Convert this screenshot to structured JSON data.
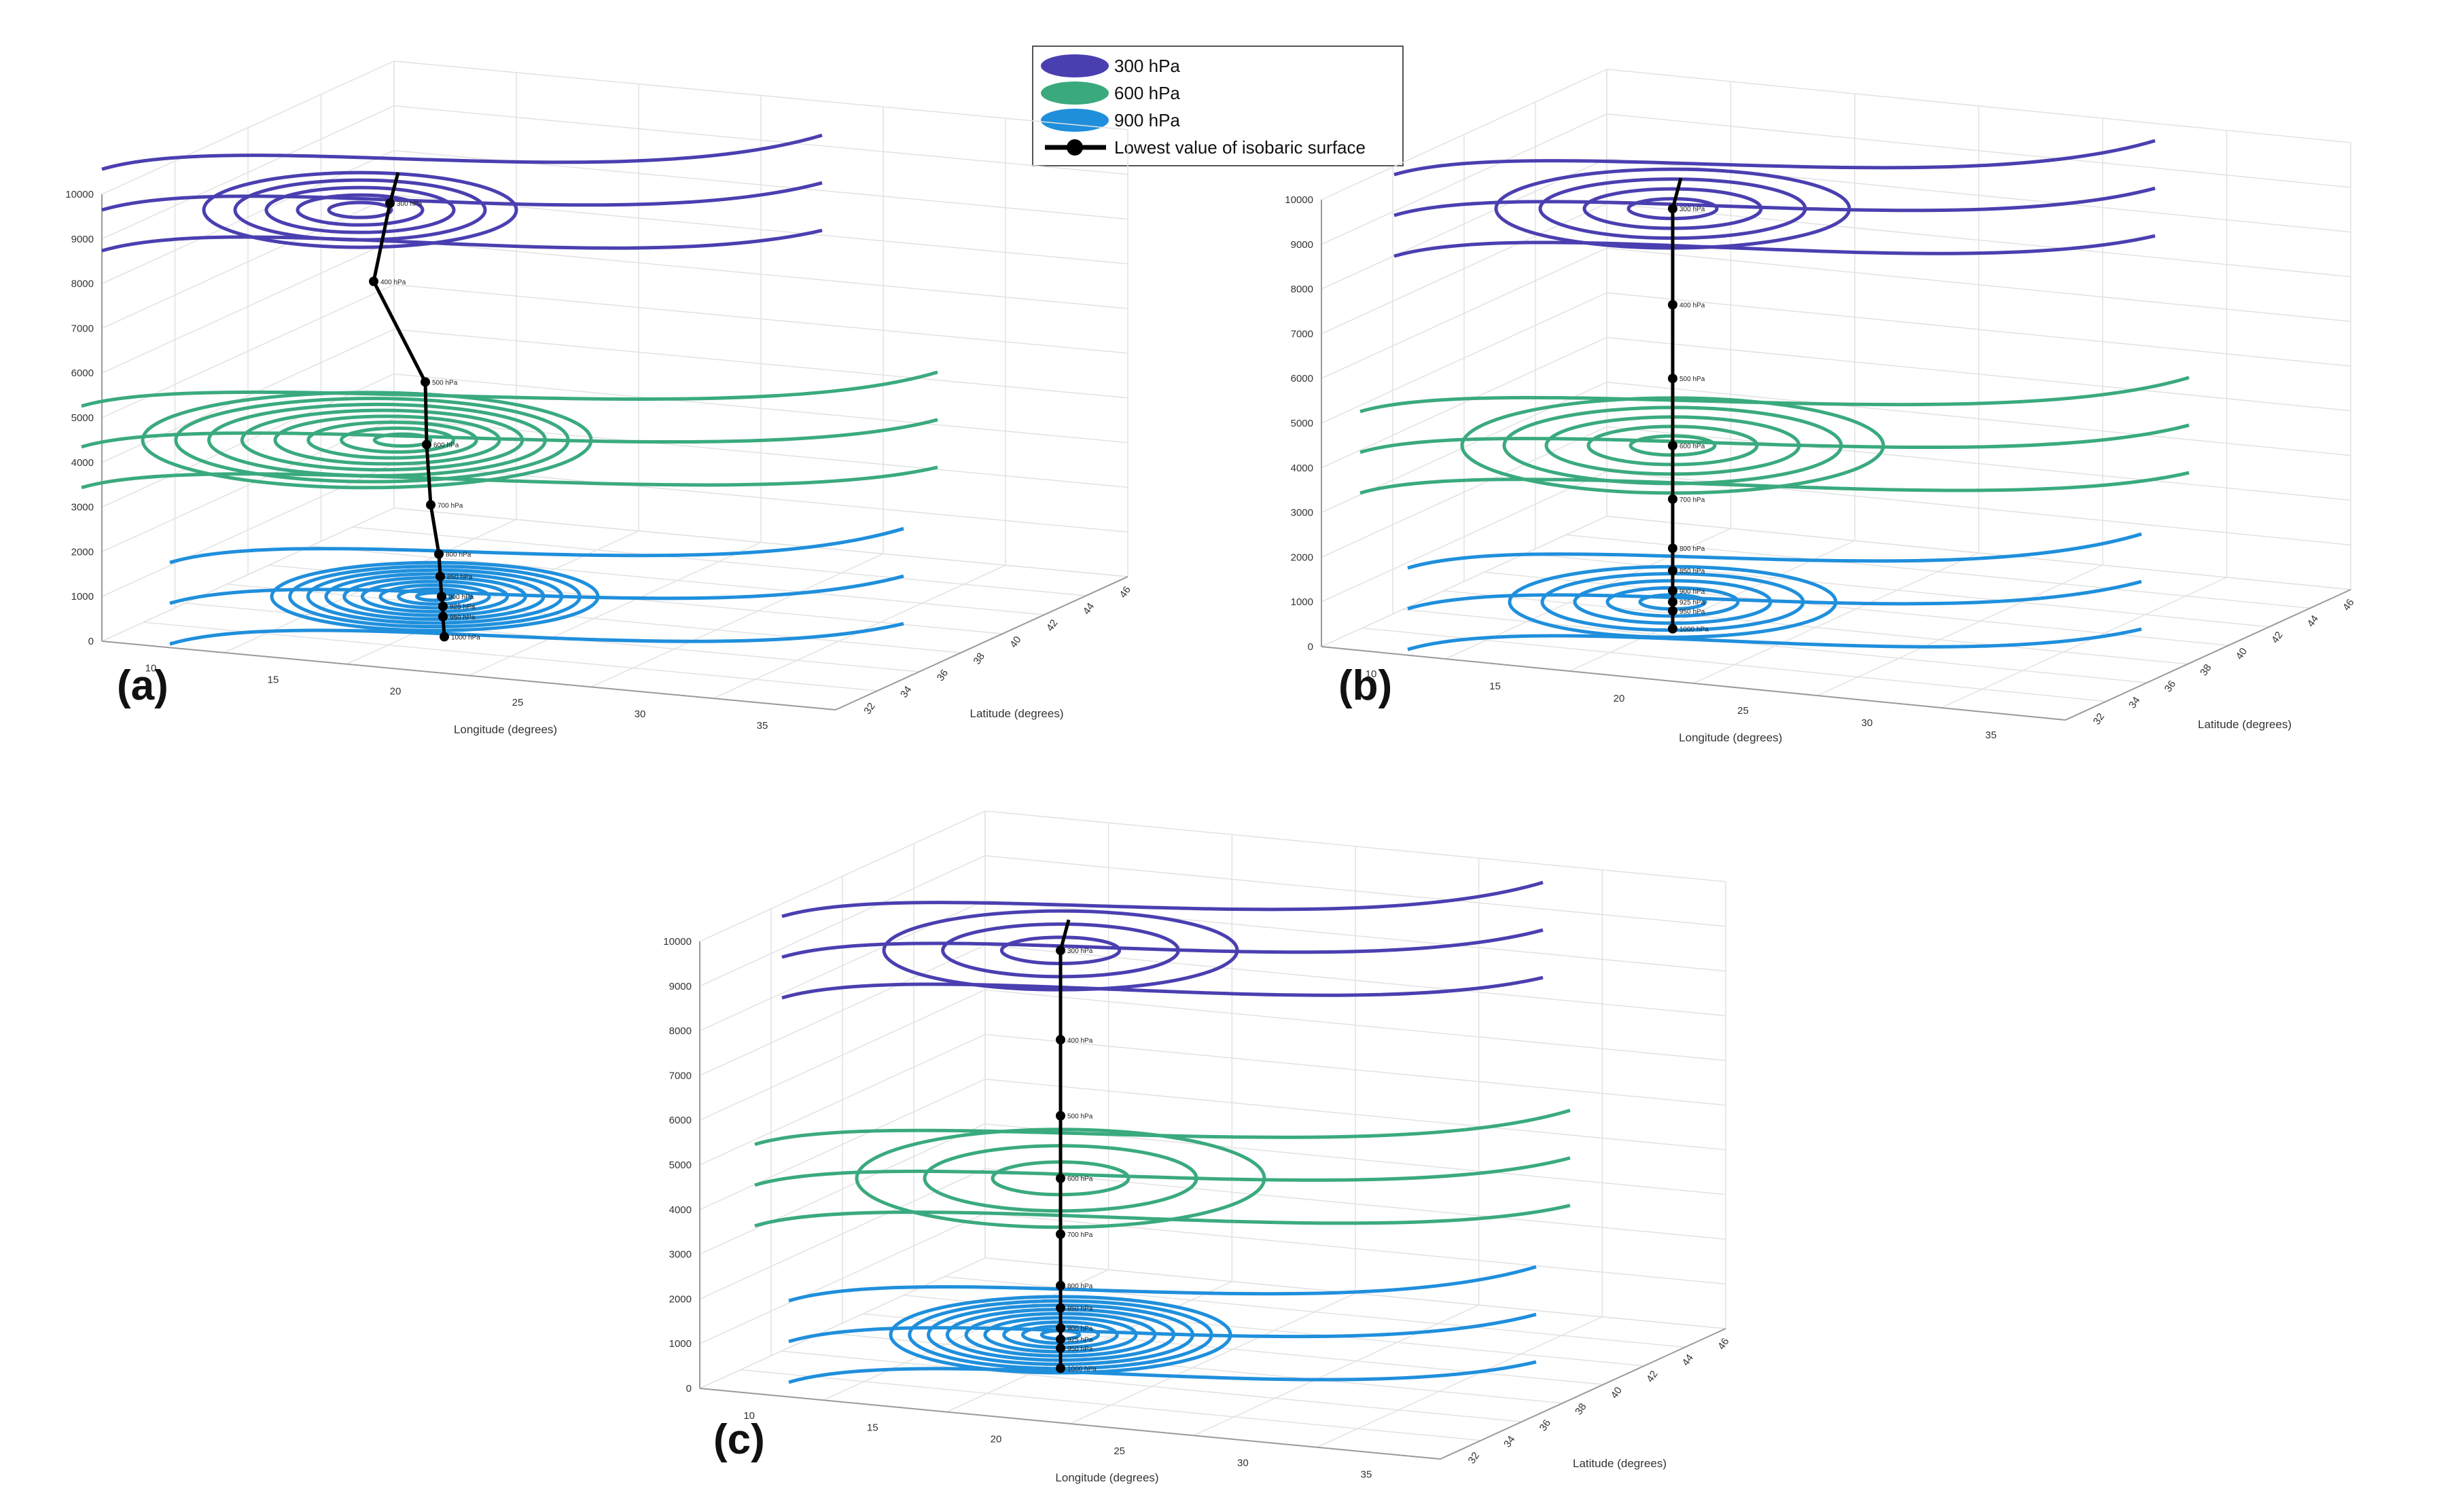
{
  "chart_data": [
    {
      "type": "line",
      "panel": "(a)",
      "title": "",
      "xlabel": "Longitude (degrees)",
      "ylabel": "Latitude (degrees)",
      "zlabel": "",
      "z_ticks": [
        "0",
        "1000",
        "2000",
        "3000",
        "4000",
        "5000",
        "6000",
        "7000",
        "8000",
        "9000",
        "10000"
      ],
      "x_ticks": [
        "10",
        "15",
        "20",
        "25",
        "30",
        "35"
      ],
      "y_ticks": [
        "32",
        "34",
        "36",
        "38",
        "40",
        "42",
        "44",
        "46"
      ],
      "zlim": [
        0,
        10000
      ],
      "grid": true,
      "series": [
        {
          "name": "300 hPa",
          "z_level": 9800
        },
        {
          "name": "600 hPa",
          "z_level": 4500
        },
        {
          "name": "900 hPa",
          "z_level": 1000
        },
        {
          "name": "Lowest value of isobaric surface",
          "points": [
            {
              "label": "300 hPa",
              "z": 9800,
              "x": 0.62
            },
            {
              "label": "400 hPa",
              "z": 8050,
              "x": 0.58
            },
            {
              "label": "500 hPa",
              "z": 5800,
              "x": 0.86
            },
            {
              "label": "600 hPa",
              "z": 4400,
              "x": 0.85
            },
            {
              "label": "700 hPa",
              "z": 3050,
              "x": 0.88
            },
            {
              "label": "800 hPa",
              "z": 1950,
              "x": 0.9
            },
            {
              "label": "850 hPa",
              "z": 1450,
              "x": 0.9
            },
            {
              "label": "900 hPa",
              "z": 1000,
              "x": 0.91
            },
            {
              "label": "925 hPa",
              "z": 780,
              "x": 0.92
            },
            {
              "label": "950 hPa",
              "z": 550,
              "x": 0.92
            },
            {
              "label": "1000 hPa",
              "z": 100,
              "x": 0.92
            }
          ]
        }
      ]
    },
    {
      "type": "line",
      "panel": "(b)",
      "title": "",
      "xlabel": "Longitude (degrees)",
      "ylabel": "Latitude (degrees)",
      "z_ticks": [
        "0",
        "1000",
        "2000",
        "3000",
        "4000",
        "5000",
        "6000",
        "7000",
        "8000",
        "9000",
        "10000"
      ],
      "x_ticks": [
        "10",
        "15",
        "20",
        "25",
        "30",
        "35"
      ],
      "y_ticks": [
        "32",
        "34",
        "36",
        "38",
        "40",
        "42",
        "44",
        "46"
      ],
      "zlim": [
        0,
        10000
      ],
      "grid": true,
      "series": [
        {
          "name": "300 hPa",
          "z_level": 9800
        },
        {
          "name": "600 hPa",
          "z_level": 4500
        },
        {
          "name": "900 hPa",
          "z_level": 1000
        },
        {
          "name": "Lowest value of isobaric surface",
          "points": [
            {
              "label": "300 hPa",
              "z": 9800
            },
            {
              "label": "400 hPa",
              "z": 7650
            },
            {
              "label": "500 hPa",
              "z": 6000
            },
            {
              "label": "600 hPa",
              "z": 4500
            },
            {
              "label": "700 hPa",
              "z": 3300
            },
            {
              "label": "800 hPa",
              "z": 2200
            },
            {
              "label": "850 hPa",
              "z": 1700
            },
            {
              "label": "900 hPa",
              "z": 1250
            },
            {
              "label": "925 hPa",
              "z": 1000
            },
            {
              "label": "950 hPa",
              "z": 800
            },
            {
              "label": "1000 hPa",
              "z": 400
            }
          ]
        }
      ]
    },
    {
      "type": "line",
      "panel": "(c)",
      "title": "",
      "xlabel": "Longitude (degrees)",
      "ylabel": "Latitude (degrees)",
      "z_ticks": [
        "0",
        "1000",
        "2000",
        "3000",
        "4000",
        "5000",
        "6000",
        "7000",
        "8000",
        "9000",
        "10000"
      ],
      "x_ticks": [
        "10",
        "15",
        "20",
        "25",
        "30",
        "35"
      ],
      "y_ticks": [
        "32",
        "34",
        "36",
        "38",
        "40",
        "42",
        "44",
        "46"
      ],
      "zlim": [
        0,
        10000
      ],
      "grid": true,
      "series": [
        {
          "name": "300 hPa",
          "z_level": 9800
        },
        {
          "name": "600 hPa",
          "z_level": 4700
        },
        {
          "name": "900 hPa",
          "z_level": 1200
        },
        {
          "name": "Lowest value of isobaric surface",
          "points": [
            {
              "label": "300 hPa",
              "z": 9800
            },
            {
              "label": "400 hPa",
              "z": 7800
            },
            {
              "label": "500 hPa",
              "z": 6100
            },
            {
              "label": "600 hPa",
              "z": 4700
            },
            {
              "label": "700 hPa",
              "z": 3450
            },
            {
              "label": "800 hPa",
              "z": 2300
            },
            {
              "label": "850 hPa",
              "z": 1800
            },
            {
              "label": "900 hPa",
              "z": 1350
            },
            {
              "label": "925 hPa",
              "z": 1100
            },
            {
              "label": "950 hPa",
              "z": 900
            },
            {
              "label": "1000 hPa",
              "z": 450
            }
          ]
        }
      ]
    }
  ],
  "legend": {
    "items": [
      {
        "label": "300 hPa",
        "color": "#4a3fb0"
      },
      {
        "label": "600 hPa",
        "color": "#3aaa7e"
      },
      {
        "label": "900 hPa",
        "color": "#1f8fdc"
      },
      {
        "label": "Lowest value of isobaric surface",
        "color": "#000000"
      }
    ]
  },
  "panel_labels": [
    "(a)",
    "(b)",
    "(c)"
  ],
  "colors": {
    "p300": "#4a3fb0",
    "p600": "#3aaa7e",
    "p900": "#1f8fdc",
    "path": "#000000",
    "grid": "#e2e2e2",
    "axis": "#9a9a9a"
  }
}
